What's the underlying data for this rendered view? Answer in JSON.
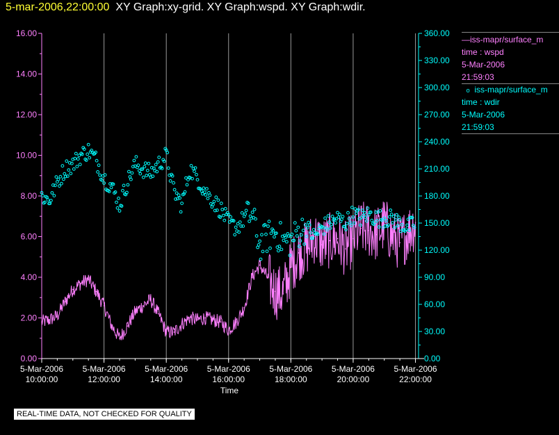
{
  "title": {
    "timestamp": "5-mar-2006,22:00:00",
    "graphs": "XY Graph:xy-grid.  XY Graph:wspd.  XY Graph:wdir."
  },
  "legend": {
    "series1_name": "iss-mapr/surface_m",
    "series1_var": "time : wspd",
    "series1_date": "5-Mar-2006",
    "series1_time": "21:59:03",
    "series2_name": "iss-mapr/surface_m",
    "series2_var": "time : wdir",
    "series2_date": "5-Mar-2006",
    "series2_time": "21:59:03"
  },
  "disclaimer": "REAL-TIME DATA, NOT CHECKED FOR QUALITY",
  "chart_data": {
    "type": "line",
    "title": "XY Graph:xy-grid.  XY Graph:wspd.  XY Graph:wdir.",
    "xlabel": "Time",
    "x_ticks": [
      {
        "date": "5-Mar-2006",
        "time": "10:00:00",
        "hour": 10
      },
      {
        "date": "5-Mar-2006",
        "time": "12:00:00",
        "hour": 12
      },
      {
        "date": "5-Mar-2006",
        "time": "14:00:00",
        "hour": 14
      },
      {
        "date": "5-Mar-2006",
        "time": "16:00:00",
        "hour": 16
      },
      {
        "date": "5-Mar-2006",
        "time": "18:00:00",
        "hour": 18
      },
      {
        "date": "5-Mar-2006",
        "time": "20:00:00",
        "hour": 20
      },
      {
        "date": "5-Mar-2006",
        "time": "22:00:00",
        "hour": 22
      }
    ],
    "xlim": [
      10.0,
      22.1
    ],
    "left_axis": {
      "ylim": [
        0,
        16
      ],
      "ticks": [
        "0.00",
        "2.00",
        "4.00",
        "6.00",
        "8.00",
        "10.00",
        "12.00",
        "14.00",
        "16.00"
      ],
      "color": "#ff80ff"
    },
    "right_axis": {
      "ylim": [
        0,
        360
      ],
      "ticks": [
        "0.00",
        "30.00",
        "60.00",
        "90.00",
        "120.00",
        "150.00",
        "180.00",
        "210.00",
        "240.00",
        "270.00",
        "300.00",
        "330.00",
        "360.00"
      ],
      "color": "#00ffff"
    },
    "series": [
      {
        "name": "wspd",
        "axis": "left",
        "style": "line",
        "color": "#ff80ff",
        "x_hours": [
          10.0,
          10.25,
          10.5,
          10.75,
          11.0,
          11.25,
          11.5,
          11.75,
          12.0,
          12.25,
          12.5,
          12.75,
          13.0,
          13.25,
          13.5,
          13.75,
          14.0,
          14.25,
          14.5,
          14.75,
          15.0,
          15.25,
          15.5,
          15.75,
          16.0,
          16.25,
          16.5,
          16.75,
          17.0,
          17.25,
          17.5,
          17.75,
          18.0,
          18.25,
          18.5,
          18.75,
          19.0,
          19.25,
          19.5,
          19.75,
          20.0,
          20.25,
          20.5,
          20.75,
          21.0,
          21.25,
          21.5,
          21.75,
          22.0
        ],
        "values": [
          1.8,
          1.9,
          2.1,
          2.8,
          3.4,
          3.7,
          3.9,
          3.3,
          2.6,
          1.6,
          1.0,
          1.6,
          2.3,
          2.6,
          2.9,
          2.2,
          1.3,
          1.3,
          1.7,
          2.0,
          1.9,
          2.0,
          1.9,
          1.8,
          1.4,
          1.8,
          2.5,
          4.0,
          4.6,
          4.0,
          3.3,
          3.2,
          4.5,
          5.2,
          5.4,
          6.0,
          5.6,
          5.8,
          5.9,
          5.4,
          5.9,
          6.4,
          6.3,
          6.1,
          6.6,
          6.0,
          5.7,
          6.2,
          6.7
        ]
      },
      {
        "name": "wdir",
        "axis": "right",
        "style": "scatter",
        "color": "#00ffff",
        "x_hours": [
          10.0,
          10.25,
          10.5,
          10.75,
          11.0,
          11.25,
          11.5,
          11.75,
          12.0,
          12.25,
          12.5,
          12.75,
          13.0,
          13.25,
          13.5,
          13.75,
          14.0,
          14.25,
          14.5,
          14.75,
          15.0,
          15.25,
          15.5,
          15.75,
          16.0,
          16.25,
          16.5,
          16.75,
          17.0,
          17.25,
          17.5,
          17.75,
          18.0,
          18.25,
          18.5,
          18.75,
          19.0,
          19.25,
          19.5,
          19.75,
          20.0,
          20.25,
          20.5,
          20.75,
          21.0,
          21.25,
          21.5,
          21.75,
          22.0
        ],
        "values": [
          180,
          175,
          195,
          210,
          215,
          225,
          230,
          220,
          200,
          190,
          170,
          195,
          215,
          210,
          205,
          215,
          225,
          185,
          170,
          210,
          200,
          185,
          175,
          165,
          150,
          145,
          155,
          160,
          125,
          135,
          140,
          130,
          130,
          140,
          145,
          135,
          145,
          150,
          155,
          150,
          160,
          155,
          160,
          155,
          155,
          155,
          150,
          145,
          150
        ]
      }
    ]
  }
}
